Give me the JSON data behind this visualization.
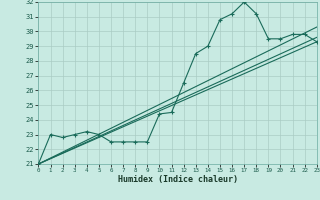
{
  "xlabel": "Humidex (Indice chaleur)",
  "bg_color": "#c8eae2",
  "line_color": "#1a6b5a",
  "grid_color": "#aaccc4",
  "ylim": [
    21,
    32
  ],
  "xlim": [
    0,
    23
  ],
  "yticks": [
    21,
    22,
    23,
    24,
    25,
    26,
    27,
    28,
    29,
    30,
    31,
    32
  ],
  "xticks": [
    0,
    1,
    2,
    3,
    4,
    5,
    6,
    7,
    8,
    9,
    10,
    11,
    12,
    13,
    14,
    15,
    16,
    17,
    18,
    19,
    20,
    21,
    22,
    23
  ],
  "series1_x": [
    0,
    1,
    2,
    3,
    4,
    5,
    6,
    7,
    8,
    9,
    10,
    11,
    12,
    13,
    14,
    15,
    16,
    17,
    18,
    19,
    20,
    21,
    22,
    23
  ],
  "series1_y": [
    21.0,
    23.0,
    22.8,
    23.0,
    23.2,
    23.0,
    22.5,
    22.5,
    22.5,
    22.5,
    24.4,
    24.5,
    26.5,
    28.5,
    29.0,
    30.8,
    31.2,
    32.0,
    31.2,
    29.5,
    29.5,
    29.8,
    29.8,
    29.3
  ],
  "line1_y": [
    21.0,
    29.3
  ],
  "line2_y": [
    21.0,
    29.6
  ],
  "line3_y": [
    21.0,
    30.3
  ]
}
